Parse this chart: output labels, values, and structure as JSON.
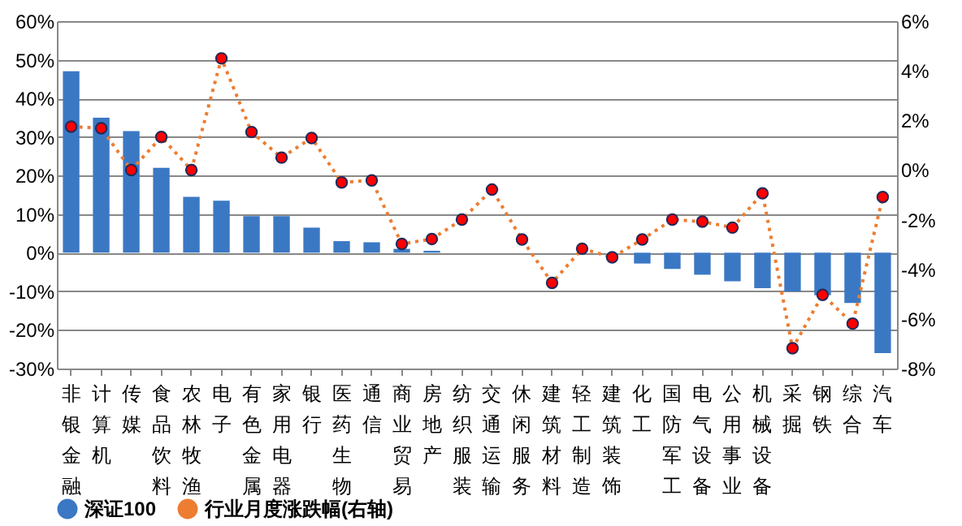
{
  "chart_data": {
    "type": "bar",
    "categories": [
      "非银金融",
      "计算机",
      "传媒",
      "食品饮料",
      "农林牧渔",
      "电子",
      "有色金属",
      "家用电器",
      "银行",
      "医药生物",
      "通信",
      "商业贸易",
      "房地产",
      "纺织服装",
      "交通运输",
      "休闲服务",
      "建筑材料",
      "轻工制造",
      "建筑装饰",
      "化工",
      "国防军工",
      "电气设备",
      "公用事业",
      "机械设备",
      "采掘",
      "钢铁",
      "综合",
      "汽车"
    ],
    "series": [
      {
        "name": "深证100",
        "color": "#3b78c4",
        "values": [
          47,
          35,
          31.5,
          22,
          14.5,
          13.5,
          9.5,
          9.5,
          6.5,
          3,
          2.7,
          1,
          0.5,
          0,
          0,
          0,
          0,
          0,
          0,
          -2.8,
          -4.2,
          -5.7,
          -7.4,
          -9.2,
          -10,
          -11,
          -13,
          -26
        ]
      },
      {
        "name": "行业月度涨跌幅(右轴)",
        "type": "line",
        "axis": "y2",
        "color": "#ed7d31",
        "marker": "circle",
        "line_style": "dotted",
        "values": [
          1.75,
          1.68,
          0,
          1.33,
          0,
          4.5,
          1.53,
          0.5,
          1.29,
          -0.5,
          -0.42,
          -2.98,
          -2.78,
          -2.0,
          -0.79,
          -2.8,
          -4.55,
          -3.17,
          -3.52,
          -2.8,
          -2.0,
          -2.08,
          -2.32,
          -0.94,
          -7.18,
          -5.03,
          -6.19,
          -1.09
        ]
      }
    ],
    "ylim": [
      -30,
      60
    ],
    "yticks": [
      {
        "value": -30,
        "label": "-30%"
      },
      {
        "value": -20,
        "label": "-20%"
      },
      {
        "value": -10,
        "label": "-10%"
      },
      {
        "value": 0,
        "label": "0%"
      },
      {
        "value": 10,
        "label": "10%"
      },
      {
        "value": 20,
        "label": "20%"
      },
      {
        "value": 30,
        "label": "30%"
      },
      {
        "value": 40,
        "label": "40%"
      },
      {
        "value": 50,
        "label": "50%"
      },
      {
        "value": 60,
        "label": "60%"
      }
    ],
    "y2lim": [
      -8,
      6
    ],
    "y2ticks": [
      {
        "value": -8,
        "label": "-8%"
      },
      {
        "value": -6,
        "label": "-6%"
      },
      {
        "value": -4,
        "label": "-4%"
      },
      {
        "value": -2,
        "label": "-2%"
      },
      {
        "value": 0,
        "label": "0%"
      },
      {
        "value": 2,
        "label": "2%"
      },
      {
        "value": 4,
        "label": "4%"
      },
      {
        "value": 6,
        "label": "6%"
      }
    ],
    "grid": "y",
    "legend": "bottom"
  }
}
